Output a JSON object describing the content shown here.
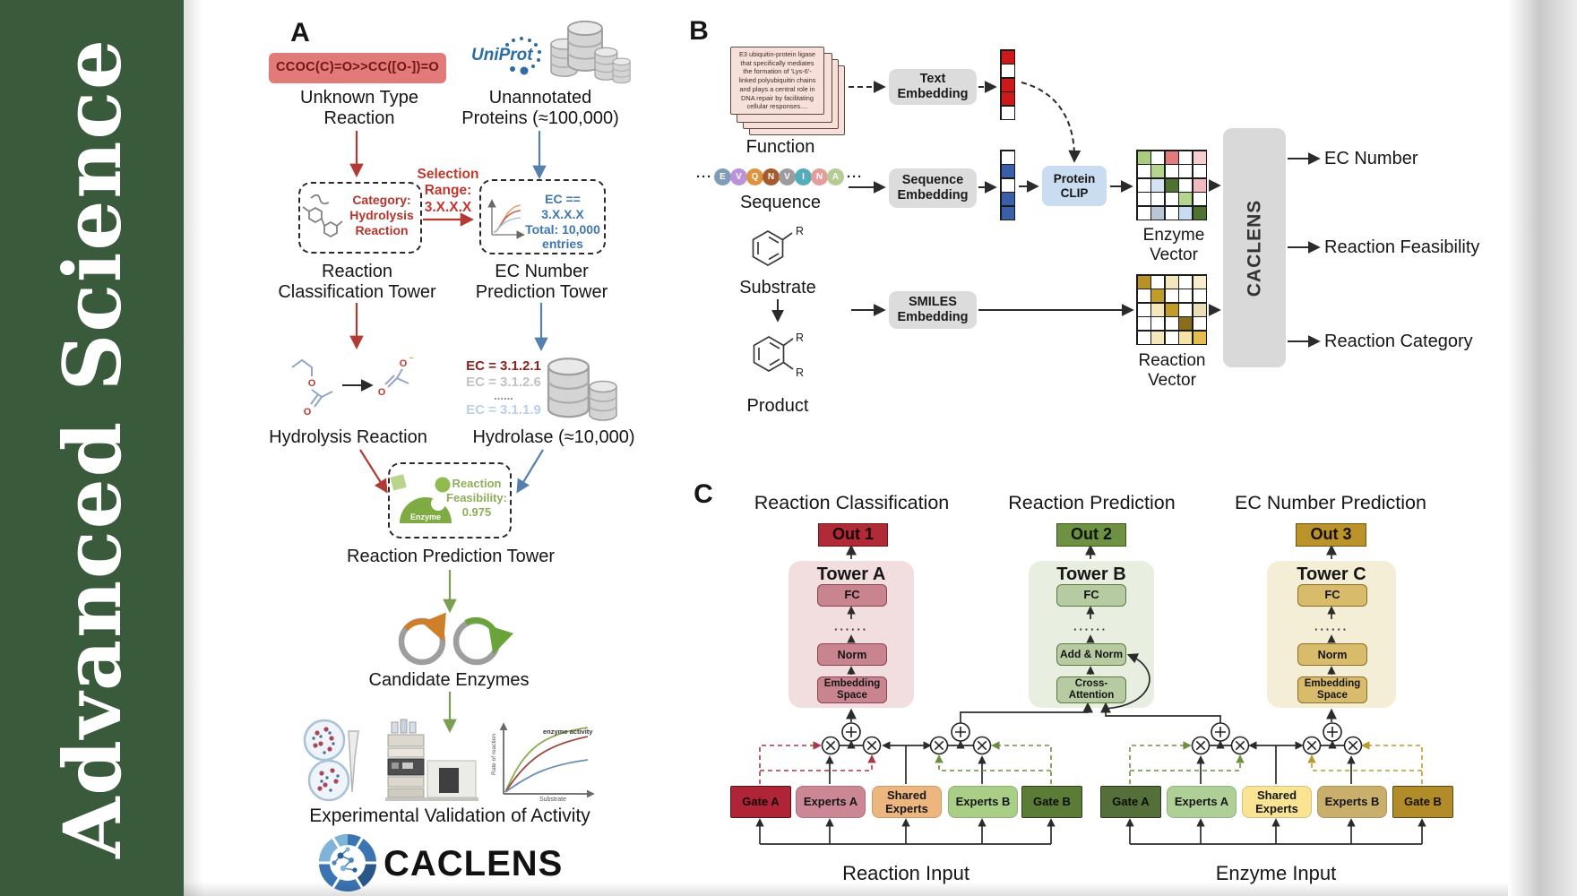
{
  "journal": {
    "title": "Advanced Science"
  },
  "colors": {
    "sidebar_green": "#3a5a3c",
    "arrow_red": "#b23a35",
    "arrow_blue": "#557fad",
    "arrow_green": "#7a9e52",
    "uniprot_blue": "#2e6ca6",
    "smiles_box_bg": "#e27a7a",
    "out1_red": "#b02a38",
    "out2_green": "#6e9143",
    "out3_gold": "#ba932b"
  },
  "panelA": {
    "label": "A",
    "smiles": "CCOC(C)=O>>CC([O-])=O",
    "unknown_reaction": "Unknown Type\nReaction",
    "uniprot": "UniProt",
    "unannotated": "Unannotated\nProteins (≈100,000)",
    "selection": "Selection\nRange:\n3.X.X.X",
    "classification_box": "Category:\nHydrolysis\nReaction",
    "ec_box": "EC == 3.X.X.X\nTotal: 10,000\nentries",
    "classification_tower": "Reaction\nClassification Tower",
    "ec_tower": "EC Number\nPrediction Tower",
    "hydrolysis": "Hydrolysis Reaction",
    "ec_list": [
      "EC = 3.1.2.1",
      "EC = 3.1.2.6",
      "......",
      "EC = 3.1.1.9"
    ],
    "hydrolase": "Hydrolase (≈10,000)",
    "enzyme_label": "Enzyme",
    "feasibility_box": "Reaction\nFeasibility:\n0.975",
    "prediction_tower": "Reaction Prediction Tower",
    "candidates": "Candidate Enzymes",
    "validation": "Experimental Validation of Activity",
    "wordmark": "CACLENS",
    "atoms": {
      "o": "O",
      "o_minus": "O",
      "minus": "–"
    },
    "plot": {
      "curve_label": "enzyme activity",
      "ylabel": "Rate of reaction",
      "xlabel": "Substrate"
    }
  },
  "panelB": {
    "label": "B",
    "function_card": "E3 ubiquitin-protein ligase that specifically mediates the formation of 'Lys-6'-linked polyubiquitin chains and plays a central role in DNA repair by facilitating cellular responses....",
    "function_label": "Function",
    "ellipsis": "···",
    "residues": [
      {
        "letter": "E",
        "color": "#7f9cb8"
      },
      {
        "letter": "V",
        "color": "#bb93dd"
      },
      {
        "letter": "Q",
        "color": "#e0923c"
      },
      {
        "letter": "N",
        "color": "#a65a2b"
      },
      {
        "letter": "V",
        "color": "#9c9c9c"
      },
      {
        "letter": "I",
        "color": "#55acba"
      },
      {
        "letter": "N",
        "color": "#e59c9c"
      },
      {
        "letter": "A",
        "color": "#b7cb95"
      }
    ],
    "sequence_label": "Sequence",
    "substrate_label": "Substrate",
    "product_label": "Product",
    "r_label": "R",
    "text_embedding": "Text\nEmbedding",
    "sequence_embedding": "Sequence\nEmbedding",
    "smiles_embedding": "SMILES\nEmbedding",
    "protein_clip": "Protein\nCLIP",
    "text_vector": [
      "#cc1a1a",
      "#ffffff",
      "#cc1a1a",
      "#cc1a1a",
      "#ffffff"
    ],
    "sequence_vector": [
      "#ffffff",
      "#3a5fa8",
      "#ffffff",
      "#3a5fa8",
      "#3a5fa8"
    ],
    "enzyme_matrix": [
      [
        "#a9cd80",
        "#ffffff",
        "#e27b7b",
        "#ffffff",
        "#f6cdd0"
      ],
      [
        "#ffffff",
        "#b3d58e",
        "#ffffff",
        "#ffffff",
        "#ffffff"
      ],
      [
        "#ffffff",
        "#d4e4f2",
        "#4e7231",
        "#ffffff",
        "#f0babe"
      ],
      [
        "#ffffff",
        "#ffffff",
        "#ffffff",
        "#b3d58e",
        "#ffffff"
      ],
      [
        "#ffffff",
        "#b9c6d3",
        "#ffffff",
        "#c7dcf2",
        "#4e7231"
      ]
    ],
    "reaction_matrix": [
      [
        "#b8912b",
        "#ffffff",
        "#f4e7bc",
        "#ffffff",
        "#f6eecd"
      ],
      [
        "#ffffff",
        "#c29c26",
        "#ffffff",
        "#ffffff",
        "#ffffff"
      ],
      [
        "#ffffff",
        "#f4e7bc",
        "#c29c26",
        "#ffffff",
        "#eadfb6"
      ],
      [
        "#ffffff",
        "#ffffff",
        "#ffffff",
        "#8a6d1c",
        "#ffffff"
      ],
      [
        "#ffffff",
        "#f4e7bc",
        "#ffffff",
        "#f5e4a8",
        "#e4bd4e"
      ]
    ],
    "enzyme_vector_label": "Enzyme Vector",
    "reaction_vector_label": "Reaction Vector",
    "caclens_label": "CACLENS",
    "outputs": [
      "EC Number",
      "Reaction Feasibility",
      "Reaction Category"
    ]
  },
  "panelC": {
    "label": "C",
    "columns": [
      {
        "header": "Reaction Classification",
        "out": "Out 1",
        "tower": "Tower A",
        "fc": "FC",
        "dots": "······",
        "mid": "Norm",
        "bottom": "Embedding\nSpace"
      },
      {
        "header": "Reaction Prediction",
        "out": "Out 2",
        "tower": "Tower B",
        "fc": "FC",
        "dots": "······",
        "mid": "Add & Norm",
        "bottom": "Cross-\nAttention"
      },
      {
        "header": "EC Number Prediction",
        "out": "Out 3",
        "tower": "Tower C",
        "fc": "FC",
        "dots": "······",
        "mid": "Norm",
        "bottom": "Embedding\nSpace"
      }
    ],
    "moe": {
      "reaction": {
        "gate_a": "Gate A",
        "experts_a": "Experts A",
        "shared": "Shared\nExperts",
        "experts_b": "Experts B",
        "gate_b": "Gate B",
        "input_label": "Reaction Input"
      },
      "enzyme": {
        "gate_a": "Gate A",
        "experts_a": "Experts A",
        "shared": "Shared\nExperts",
        "experts_b": "Experts B",
        "gate_b": "Gate B",
        "input_label": "Enzyme Input"
      }
    }
  }
}
